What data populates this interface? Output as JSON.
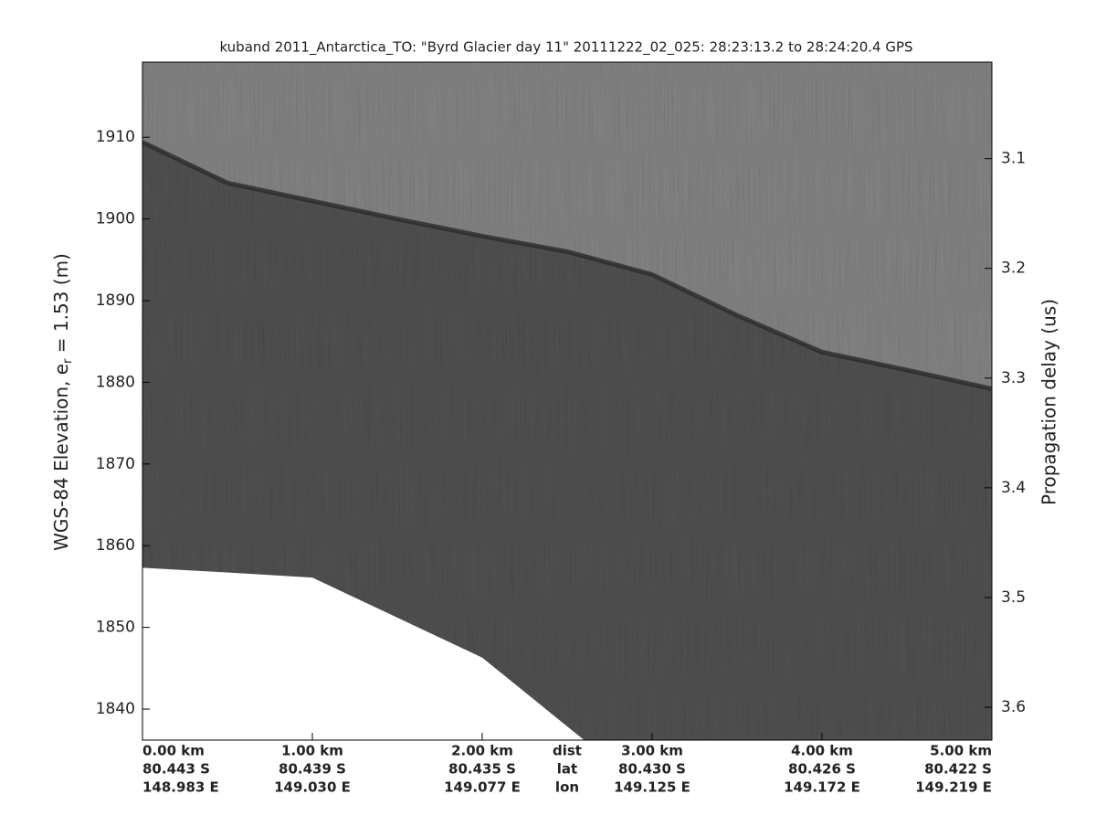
{
  "chart_data": {
    "type": "echogram",
    "title": "kuband 2011_Antarctica_TO: \"Byrd Glacier day 11\"  20111222_02_025: 28:23:13.2 to 28:24:20.4 GPS",
    "ylabel_parts": [
      "WGS-84 Elevation, e",
      "r",
      " = 1.53 (m)"
    ],
    "y2label": "Propagation delay (us)",
    "xlim": [
      0,
      5
    ],
    "xticks": [
      {
        "value": 0,
        "label": "0.00 km"
      },
      {
        "value": 1,
        "label": "1.00 km"
      },
      {
        "value": 2,
        "label": "2.00 km"
      },
      {
        "value": 3,
        "label": "3.00 km"
      },
      {
        "value": 4,
        "label": "4.00 km"
      },
      {
        "value": 5,
        "label": "5.00 km"
      }
    ],
    "xtick_lat": [
      "80.443 S",
      "80.439 S",
      "80.435 S",
      "80.430 S",
      "80.426 S",
      "80.422 S"
    ],
    "xtick_lon": [
      "148.983 E",
      "149.030 E",
      "149.077 E",
      "149.125 E",
      "149.172 E",
      "149.219 E"
    ],
    "row_labels": [
      "dist",
      "lat",
      "lon"
    ],
    "ylim": [
      1836.2,
      1919.2
    ],
    "yticks": [
      1840,
      1850,
      1860,
      1870,
      1880,
      1890,
      1900,
      1910
    ],
    "y2lim": [
      3.63,
      3.012
    ],
    "y2ticks": [
      3.1,
      3.2,
      3.3,
      3.4,
      3.5,
      3.6
    ],
    "surface": {
      "color": "#2a2a2a",
      "x": [
        0,
        0.5,
        1.0,
        1.5,
        2.0,
        2.5,
        3.0,
        3.5,
        4.0,
        4.5,
        5.0
      ],
      "values": [
        1909.4,
        1904.4,
        1902.2,
        1900,
        1897.9,
        1896,
        1893.2,
        1888.2,
        1883.7,
        1881.5,
        1879.2
      ]
    },
    "data_floor": {
      "x": [
        0,
        0.6,
        1.0,
        2.0,
        2.6
      ],
      "values": [
        1857.3,
        1856.6,
        1856.1,
        1846.3,
        1836.2
      ]
    }
  }
}
